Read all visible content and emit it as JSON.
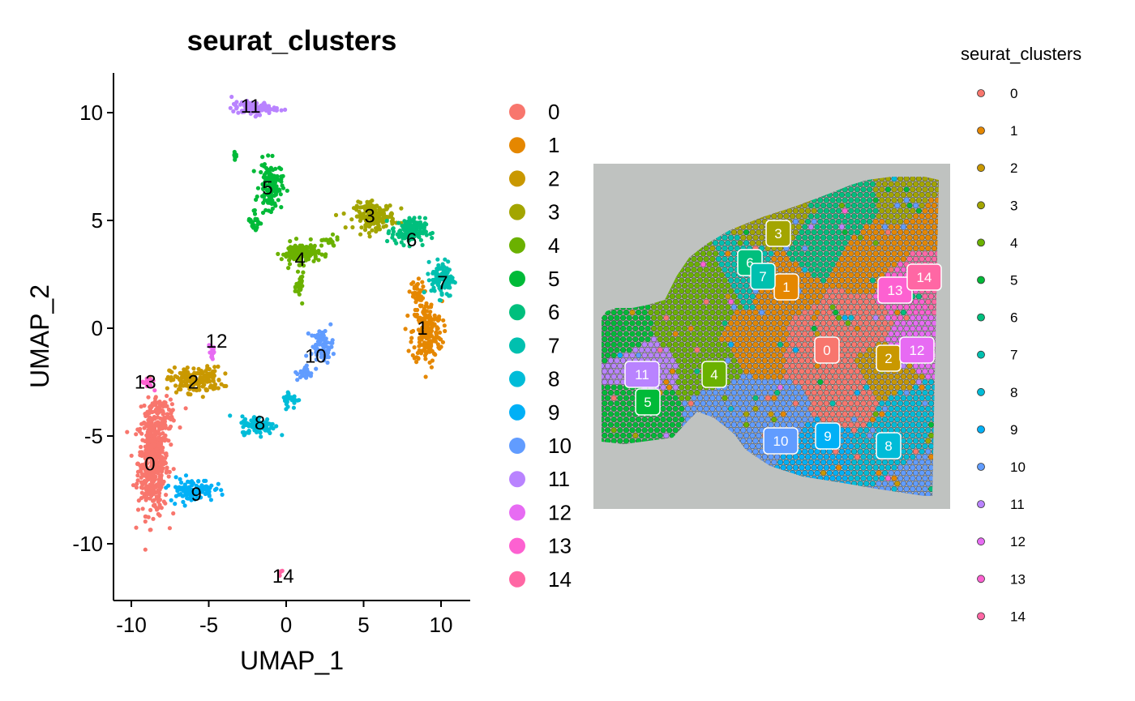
{
  "figure": {
    "umap": {
      "title": "seurat_clusters",
      "xlabel": "UMAP_1",
      "ylabel": "UMAP_2"
    },
    "spatial": {
      "legend_title": "seurat_clusters"
    }
  },
  "chart_data": [
    {
      "type": "scatter",
      "title": "seurat_clusters",
      "xlabel": "UMAP_1",
      "ylabel": "UMAP_2",
      "xlim": [
        -11,
        12
      ],
      "ylim": [
        -12.5,
        11.8
      ],
      "xticks": [
        -10,
        -5,
        0,
        5,
        10
      ],
      "xtick_labels": [
        "-10",
        "-5",
        "0",
        "5",
        "10"
      ],
      "yticks": [
        -10,
        -5,
        0,
        5,
        10
      ],
      "ytick_labels": [
        "-10",
        "-5",
        "0",
        "5",
        "10"
      ],
      "grid": false,
      "legend": "right",
      "clusters": [
        {
          "name": "0",
          "color": "#F8766D",
          "label_pos": [
            -8.8,
            -6.3
          ],
          "blobs": [
            [
              -8.6,
              -6.2,
              0.8,
              2.0,
              460
            ],
            [
              -8.0,
              -4.0,
              0.8,
              0.6,
              90
            ]
          ]
        },
        {
          "name": "1",
          "color": "#E58700",
          "label_pos": [
            8.8,
            0.0
          ],
          "blobs": [
            [
              9.1,
              -0.2,
              0.8,
              1.2,
              200
            ],
            [
              8.4,
              1.6,
              0.4,
              0.5,
              40
            ]
          ]
        },
        {
          "name": "2",
          "color": "#C99800",
          "label_pos": [
            -6.0,
            -2.5
          ],
          "blobs": [
            [
              -5.8,
              -2.4,
              1.4,
              0.5,
              170
            ]
          ]
        },
        {
          "name": "3",
          "color": "#A3A500",
          "label_pos": [
            5.4,
            5.2
          ],
          "blobs": [
            [
              5.7,
              5.2,
              1.1,
              0.5,
              170
            ]
          ]
        },
        {
          "name": "4",
          "color": "#6BB100",
          "label_pos": [
            0.9,
            3.2
          ],
          "blobs": [
            [
              0.9,
              3.5,
              1.0,
              0.4,
              130
            ],
            [
              0.9,
              1.9,
              0.2,
              0.5,
              30
            ],
            [
              2.7,
              4.0,
              0.6,
              0.2,
              20
            ]
          ]
        },
        {
          "name": "5",
          "color": "#00BA38",
          "label_pos": [
            -1.2,
            6.5
          ],
          "blobs": [
            [
              -1.0,
              6.6,
              0.6,
              0.9,
              130
            ],
            [
              -2.0,
              5.0,
              0.4,
              0.5,
              25
            ],
            [
              -3.3,
              8.0,
              0.1,
              0.2,
              8
            ]
          ]
        },
        {
          "name": "6",
          "color": "#00BF7D",
          "label_pos": [
            8.1,
            4.1
          ],
          "blobs": [
            [
              7.9,
              4.5,
              0.9,
              0.5,
              140
            ]
          ]
        },
        {
          "name": "7",
          "color": "#00C0AF",
          "label_pos": [
            10.1,
            2.1
          ],
          "blobs": [
            [
              10.1,
              2.3,
              0.6,
              0.7,
              110
            ]
          ]
        },
        {
          "name": "8",
          "color": "#00BCD8",
          "label_pos": [
            -1.7,
            -4.4
          ],
          "blobs": [
            [
              -1.8,
              -4.5,
              0.9,
              0.35,
              100
            ],
            [
              0.3,
              -3.3,
              0.5,
              0.35,
              30
            ]
          ]
        },
        {
          "name": "9",
          "color": "#00B0F6",
          "label_pos": [
            -5.8,
            -7.7
          ],
          "blobs": [
            [
              -6.1,
              -7.5,
              1.2,
              0.45,
              110
            ]
          ]
        },
        {
          "name": "10",
          "color": "#619CFF",
          "label_pos": [
            1.9,
            -1.3
          ],
          "blobs": [
            [
              2.3,
              -0.8,
              0.6,
              0.6,
              70
            ],
            [
              1.2,
              -2.1,
              0.4,
              0.3,
              25
            ]
          ]
        },
        {
          "name": "11",
          "color": "#B983FF",
          "label_pos": [
            -2.3,
            10.3
          ],
          "blobs": [
            [
              -2.1,
              10.2,
              1.2,
              0.25,
              90
            ]
          ]
        },
        {
          "name": "12",
          "color": "#E76BF3",
          "label_pos": [
            -4.5,
            -0.6
          ],
          "blobs": [
            [
              -4.8,
              -1.1,
              0.2,
              0.4,
              18
            ]
          ]
        },
        {
          "name": "13",
          "color": "#FD61D1",
          "label_pos": [
            -9.1,
            -2.5
          ],
          "blobs": [
            [
              -8.9,
              -2.5,
              0.3,
              0.25,
              18
            ]
          ]
        },
        {
          "name": "14",
          "color": "#FF67A4",
          "label_pos": [
            -0.2,
            -11.5
          ],
          "blobs": [
            [
              -0.4,
              -11.3,
              0.1,
              0.1,
              5
            ]
          ]
        }
      ]
    },
    {
      "type": "scatter",
      "title": "",
      "legend_title": "seurat_clusters",
      "legend": "right",
      "spatial_labels": [
        "0",
        "1",
        "2",
        "3",
        "4",
        "5",
        "6",
        "7",
        "8",
        "9",
        "10",
        "11",
        "12",
        "13",
        "14"
      ]
    }
  ]
}
